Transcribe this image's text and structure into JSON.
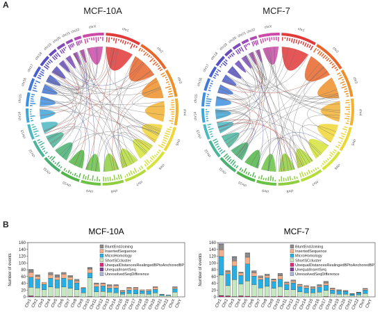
{
  "panel_a": {
    "letter": "A",
    "left_title": "MCF-10A",
    "right_title": "MCF-7",
    "chromosome_labels": [
      "chr1",
      "chr2",
      "chr3",
      "chr4",
      "chr5",
      "chr6",
      "chr7",
      "chr8",
      "chr9",
      "chr10",
      "chr11",
      "chr12",
      "chr13",
      "chr14",
      "chr15",
      "chr16",
      "chr17",
      "chr18",
      "chr19",
      "chr20",
      "chr21",
      "chr22",
      "chrX"
    ],
    "colors": [
      "#e03a3a",
      "#e8662a",
      "#ef8f2a",
      "#f2b233",
      "#eed636",
      "#d6e33a",
      "#b6dc3c",
      "#8fcf3f",
      "#6ac244",
      "#52b548",
      "#48b070",
      "#4bb59b",
      "#4cb8c0",
      "#3fa7d8",
      "#3f8fe0",
      "#4277d8",
      "#4a60cf",
      "#5650c2",
      "#6a4bbd",
      "#7f4bb9",
      "#9a4ab7",
      "#b24ab2",
      "#cc4aa8"
    ]
  },
  "panel_b": {
    "letter": "B",
    "legend": [
      {
        "label": "BluntEndJoining",
        "color": "#8c8c8c"
      },
      {
        "label": "InsertedSequence",
        "color": "#f4b08a"
      },
      {
        "label": "MicroHomology",
        "color": "#27aee2"
      },
      {
        "label": "ShortSCcluster",
        "color": "#c5e8c0"
      },
      {
        "label": "UnequalDistancesRealingedBPtoAnchoredBP",
        "color": "#e0247c"
      },
      {
        "label": "UnequalInsertSeq",
        "color": "#7b3b93"
      },
      {
        "label": "UnresolvedSeqDifference",
        "color": "#a9b7db"
      }
    ]
  },
  "chart_data": [
    {
      "type": "bar",
      "stacked": true,
      "title": "MCF-10A",
      "xlabel": "",
      "ylabel": "Number of events",
      "ylim": [
        0,
        160
      ],
      "yticks": [
        0,
        20,
        40,
        60,
        80,
        100,
        120,
        140,
        160
      ],
      "categories": [
        "Chr1",
        "Chr2",
        "Chr3",
        "Chr4",
        "Chr5",
        "Chr6",
        "Chr7",
        "Chr8",
        "Chr9",
        "Chr10",
        "Chr11",
        "Chr12",
        "Chr13",
        "Chr14",
        "Chr15",
        "Chr16",
        "Chr17",
        "Chr18",
        "Chr19",
        "Chr20",
        "Chr21",
        "Chr22",
        "ChrX",
        "ChrY"
      ],
      "series": [
        {
          "name": "UnequalDistancesRealingedBPtoAnchoredBP",
          "values": [
            2,
            1,
            1,
            1,
            1,
            1,
            1,
            1,
            0,
            1,
            0,
            1,
            0,
            0,
            0,
            0,
            0,
            0,
            0,
            0,
            0,
            0,
            0,
            0
          ]
        },
        {
          "name": "UnequalInsertSeq",
          "values": [
            1,
            0,
            0,
            0,
            0,
            0,
            0,
            0,
            0,
            0,
            0,
            0,
            0,
            0,
            0,
            0,
            0,
            0,
            0,
            0,
            0,
            0,
            0,
            0
          ]
        },
        {
          "name": "ShortSCcluster",
          "values": [
            25,
            25,
            20,
            28,
            25,
            28,
            24,
            20,
            12,
            55,
            15,
            15,
            14,
            12,
            8,
            10,
            9,
            10,
            8,
            12,
            4,
            4,
            14,
            0
          ]
        },
        {
          "name": "MicroHomology",
          "values": [
            30,
            26,
            16,
            26,
            24,
            26,
            25,
            20,
            14,
            14,
            15,
            16,
            12,
            14,
            6,
            10,
            12,
            8,
            10,
            10,
            3,
            2,
            10,
            0
          ]
        },
        {
          "name": "InsertedSequence",
          "values": [
            14,
            8,
            6,
            10,
            8,
            12,
            8,
            6,
            2,
            12,
            8,
            7,
            6,
            7,
            3,
            6,
            5,
            3,
            4,
            6,
            1,
            0,
            4,
            0
          ]
        },
        {
          "name": "BluntEndJoining",
          "values": [
            8,
            5,
            0,
            7,
            6,
            5,
            5,
            5,
            0,
            4,
            3,
            2,
            4,
            3,
            2,
            2,
            2,
            0,
            0,
            2,
            0,
            0,
            2,
            0
          ]
        },
        {
          "name": "UnresolvedSeqDifference",
          "values": [
            1,
            0,
            0,
            0,
            1,
            0,
            0,
            0,
            0,
            1,
            0,
            0,
            0,
            0,
            0,
            0,
            0,
            0,
            0,
            0,
            0,
            0,
            0,
            0
          ]
        }
      ]
    },
    {
      "type": "bar",
      "stacked": true,
      "title": "MCF-7",
      "xlabel": "",
      "ylabel": "Number of events",
      "ylim": [
        0,
        160
      ],
      "yticks": [
        0,
        20,
        40,
        60,
        80,
        100,
        120,
        140,
        160
      ],
      "categories": [
        "Chr1",
        "Chr2",
        "Chr3",
        "Chr4",
        "Chr5",
        "Chr6",
        "Chr7",
        "Chr8",
        "Chr9",
        "Chr10",
        "Chr11",
        "Chr12",
        "Chr13",
        "Chr14",
        "Chr15",
        "Chr16",
        "Chr17",
        "Chr18",
        "Chr19",
        "Chr20",
        "Chr21",
        "Chr22",
        "ChrX",
        "ChrY"
      ],
      "series": [
        {
          "name": "UnequalDistancesRealingedBPtoAnchoredBP",
          "values": [
            3,
            2,
            1,
            2,
            2,
            1,
            1,
            1,
            1,
            2,
            1,
            1,
            0,
            0,
            0,
            0,
            1,
            0,
            0,
            0,
            0,
            0,
            0,
            0
          ]
        },
        {
          "name": "UnequalInsertSeq",
          "values": [
            1,
            1,
            0,
            1,
            0,
            0,
            0,
            0,
            0,
            0,
            0,
            0,
            0,
            0,
            0,
            0,
            0,
            0,
            0,
            0,
            0,
            0,
            0,
            0
          ]
        },
        {
          "name": "ShortSCcluster",
          "values": [
            60,
            30,
            50,
            35,
            45,
            35,
            25,
            30,
            24,
            28,
            20,
            20,
            15,
            12,
            12,
            14,
            18,
            10,
            8,
            8,
            4,
            6,
            10,
            0
          ]
        },
        {
          "name": "MicroHomology",
          "values": [
            55,
            35,
            40,
            25,
            50,
            25,
            25,
            25,
            20,
            22,
            15,
            20,
            15,
            14,
            12,
            15,
            15,
            10,
            10,
            8,
            4,
            6,
            10,
            0
          ]
        },
        {
          "name": "InsertedSequence",
          "values": [
            20,
            5,
            15,
            7,
            20,
            10,
            6,
            7,
            5,
            10,
            5,
            6,
            5,
            5,
            4,
            4,
            7,
            4,
            2,
            2,
            1,
            1,
            3,
            0
          ]
        },
        {
          "name": "BluntEndJoining",
          "values": [
            16,
            5,
            12,
            3,
            12,
            6,
            5,
            4,
            3,
            6,
            3,
            3,
            2,
            2,
            2,
            3,
            5,
            2,
            1,
            1,
            1,
            1,
            2,
            0
          ]
        },
        {
          "name": "UnresolvedSeqDifference",
          "values": [
            2,
            0,
            1,
            0,
            1,
            0,
            0,
            0,
            0,
            1,
            0,
            0,
            0,
            0,
            0,
            0,
            0,
            0,
            0,
            0,
            0,
            0,
            0,
            0
          ]
        }
      ]
    }
  ]
}
